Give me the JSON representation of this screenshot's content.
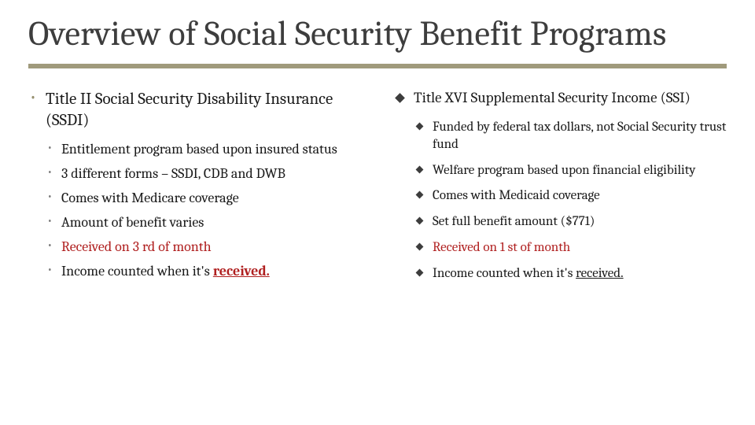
{
  "title": "Overview of Social Security Benefit Programs",
  "colors": {
    "rule": "#a09a7c",
    "bullet_lvl1": "#968f6e",
    "bullet_lvl2_left": "#7a7a7a",
    "diamond": "#3d3d3d",
    "text": "#1a1a1a",
    "title_text": "#3d3d3d",
    "accent_red": "#b02020",
    "background": "#ffffff"
  },
  "typography": {
    "family": "Cambria/Georgia serif",
    "title_size_pt": 33,
    "lvl1_size_pt": 16,
    "lvl2_size_pt": 14
  },
  "left": {
    "heading": "Title II Social Security Disability Insurance (SSDI)",
    "items": [
      [
        {
          "t": "Entitlement program based upon insured status"
        }
      ],
      [
        {
          "t": "3 different forms – SSDI, CDB and DWB"
        }
      ],
      [
        {
          "t": "Comes with Medicare coverage"
        }
      ],
      [
        {
          "t": "Amount of benefit varies"
        }
      ],
      [
        {
          "t": "Received on 3 rd of month",
          "cls": "red"
        }
      ],
      [
        {
          "t": "Income counted when it's "
        },
        {
          "t": "received.",
          "cls": "redu"
        }
      ]
    ]
  },
  "right": {
    "heading": "Title XVI Supplemental Security Income (SSI)",
    "items": [
      [
        {
          "t": "Funded by federal tax dollars, not Social Security trust fund"
        }
      ],
      [
        {
          "t": "Welfare program based upon financial eligibility"
        }
      ],
      [
        {
          "t": "Comes with Medicaid coverage"
        }
      ],
      [
        {
          "t": "Set full benefit amount ($771)"
        }
      ],
      [
        {
          "t": "Received on 1 st of month",
          "cls": "red"
        }
      ],
      [
        {
          "t": "Income counted when it's "
        },
        {
          "t": "received.",
          "cls": "blku"
        }
      ]
    ]
  }
}
